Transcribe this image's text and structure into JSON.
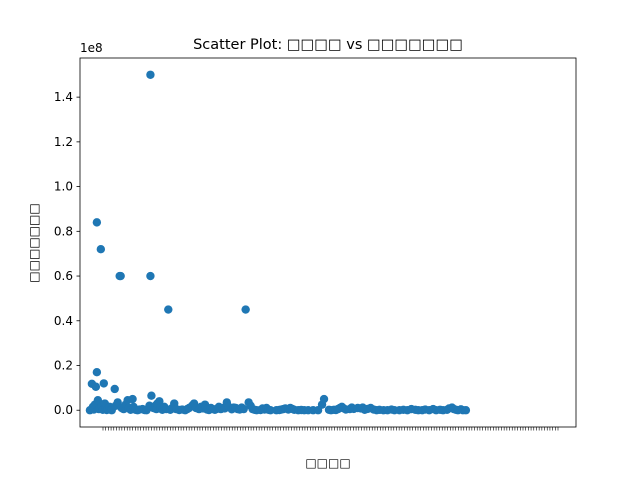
{
  "chart_data": {
    "type": "scatter",
    "title": "Scatter Plot: □□□□ vs □□□□□□□",
    "xlabel": "□□□□",
    "ylabel": "□□□□□□□",
    "y_offset_text": "1e8",
    "ylim": [
      -7500000,
      157500000
    ],
    "xlim": [
      -10,
      490
    ],
    "y_ticks": [
      0,
      20000000,
      40000000,
      60000000,
      80000000,
      100000000,
      120000000,
      140000000
    ],
    "y_tick_labels": [
      "0.0",
      "0.2",
      "0.4",
      "0.6",
      "0.8",
      "1.0",
      "1.2",
      "1.4"
    ],
    "x_axis_note": "categorical string values; tick labels overlap illegibly",
    "grid": false,
    "color": "#1f77b4",
    "points": [
      [
        0,
        0
      ],
      [
        2,
        11800000
      ],
      [
        3,
        1500000
      ],
      [
        4,
        300000
      ],
      [
        5,
        2500000
      ],
      [
        6,
        10500000
      ],
      [
        7,
        84000000
      ],
      [
        7,
        17000000
      ],
      [
        8,
        4500000
      ],
      [
        9,
        500000
      ],
      [
        10,
        1000000
      ],
      [
        11,
        72000000
      ],
      [
        12,
        2000000
      ],
      [
        13,
        200000
      ],
      [
        14,
        12000000
      ],
      [
        15,
        3000000
      ],
      [
        16,
        800000
      ],
      [
        17,
        100000
      ],
      [
        18,
        500000
      ],
      [
        20,
        1500000
      ],
      [
        21,
        200000
      ],
      [
        22,
        0
      ],
      [
        25,
        9500000
      ],
      [
        26,
        2000000
      ],
      [
        28,
        3500000
      ],
      [
        30,
        60000000
      ],
      [
        31,
        60000000
      ],
      [
        32,
        1000000
      ],
      [
        34,
        500000
      ],
      [
        36,
        2500000
      ],
      [
        38,
        4500000
      ],
      [
        39,
        1000000
      ],
      [
        41,
        200000
      ],
      [
        43,
        5000000
      ],
      [
        44,
        1500000
      ],
      [
        46,
        200000
      ],
      [
        48,
        0
      ],
      [
        50,
        300000
      ],
      [
        53,
        500000
      ],
      [
        55,
        100000
      ],
      [
        57,
        0
      ],
      [
        60,
        2000000
      ],
      [
        61,
        150000000
      ],
      [
        61,
        60000000
      ],
      [
        62,
        6500000
      ],
      [
        64,
        1000000
      ],
      [
        66,
        2000000
      ],
      [
        67,
        500000
      ],
      [
        68,
        3000000
      ],
      [
        70,
        4000000
      ],
      [
        71,
        1000000
      ],
      [
        73,
        200000
      ],
      [
        75,
        1500000
      ],
      [
        77,
        500000
      ],
      [
        79,
        45000000
      ],
      [
        81,
        200000
      ],
      [
        83,
        1000000
      ],
      [
        85,
        3000000
      ],
      [
        87,
        500000
      ],
      [
        90,
        100000
      ],
      [
        93,
        300000
      ],
      [
        96,
        0
      ],
      [
        98,
        500000
      ],
      [
        100,
        1000000
      ],
      [
        103,
        2000000
      ],
      [
        105,
        3000000
      ],
      [
        107,
        1000000
      ],
      [
        110,
        500000
      ],
      [
        112,
        1500000
      ],
      [
        114,
        800000
      ],
      [
        116,
        2500000
      ],
      [
        118,
        300000
      ],
      [
        120,
        100000
      ],
      [
        122,
        1000000
      ],
      [
        124,
        500000
      ],
      [
        126,
        200000
      ],
      [
        128,
        600000
      ],
      [
        130,
        1500000
      ],
      [
        132,
        500000
      ],
      [
        134,
        1000000
      ],
      [
        136,
        800000
      ],
      [
        138,
        3500000
      ],
      [
        140,
        1500000
      ],
      [
        143,
        400000
      ],
      [
        145,
        1200000
      ],
      [
        147,
        1000000
      ],
      [
        149,
        500000
      ],
      [
        151,
        300000
      ],
      [
        153,
        1200000
      ],
      [
        155,
        500000
      ],
      [
        157,
        45000000
      ],
      [
        160,
        3500000
      ],
      [
        162,
        2000000
      ],
      [
        164,
        500000
      ],
      [
        166,
        200000
      ],
      [
        168,
        0
      ],
      [
        172,
        100000
      ],
      [
        174,
        800000
      ],
      [
        176,
        300000
      ],
      [
        178,
        1000000
      ],
      [
        180,
        200000
      ],
      [
        182,
        0
      ],
      [
        188,
        0
      ],
      [
        191,
        100000
      ],
      [
        193,
        300000
      ],
      [
        195,
        500000
      ],
      [
        197,
        800000
      ],
      [
        200,
        300000
      ],
      [
        202,
        1000000
      ],
      [
        204,
        600000
      ],
      [
        206,
        200000
      ],
      [
        210,
        0
      ],
      [
        213,
        100000
      ],
      [
        216,
        0
      ],
      [
        220,
        0
      ],
      [
        225,
        0
      ],
      [
        230,
        0
      ],
      [
        234,
        2500000
      ],
      [
        236,
        5000000
      ],
      [
        241,
        200000
      ],
      [
        243,
        0
      ],
      [
        246,
        200000
      ],
      [
        248,
        100000
      ],
      [
        250,
        500000
      ],
      [
        252,
        1000000
      ],
      [
        254,
        1500000
      ],
      [
        256,
        800000
      ],
      [
        258,
        300000
      ],
      [
        262,
        500000
      ],
      [
        264,
        1200000
      ],
      [
        266,
        600000
      ],
      [
        270,
        1000000
      ],
      [
        273,
        800000
      ],
      [
        275,
        1200000
      ],
      [
        277,
        200000
      ],
      [
        280,
        600000
      ],
      [
        283,
        1000000
      ],
      [
        286,
        300000
      ],
      [
        289,
        0
      ],
      [
        292,
        200000
      ],
      [
        296,
        0
      ],
      [
        300,
        0
      ],
      [
        304,
        300000
      ],
      [
        307,
        0
      ],
      [
        312,
        0
      ],
      [
        316,
        200000
      ],
      [
        320,
        0
      ],
      [
        324,
        500000
      ],
      [
        328,
        200000
      ],
      [
        331,
        0
      ],
      [
        335,
        0
      ],
      [
        338,
        300000
      ],
      [
        342,
        0
      ],
      [
        346,
        500000
      ],
      [
        349,
        0
      ],
      [
        353,
        200000
      ],
      [
        356,
        0
      ],
      [
        360,
        200000
      ],
      [
        362,
        800000
      ],
      [
        365,
        1200000
      ],
      [
        367,
        500000
      ],
      [
        369,
        200000
      ],
      [
        371,
        0
      ],
      [
        374,
        400000
      ],
      [
        376,
        0
      ],
      [
        379,
        0
      ]
    ]
  }
}
